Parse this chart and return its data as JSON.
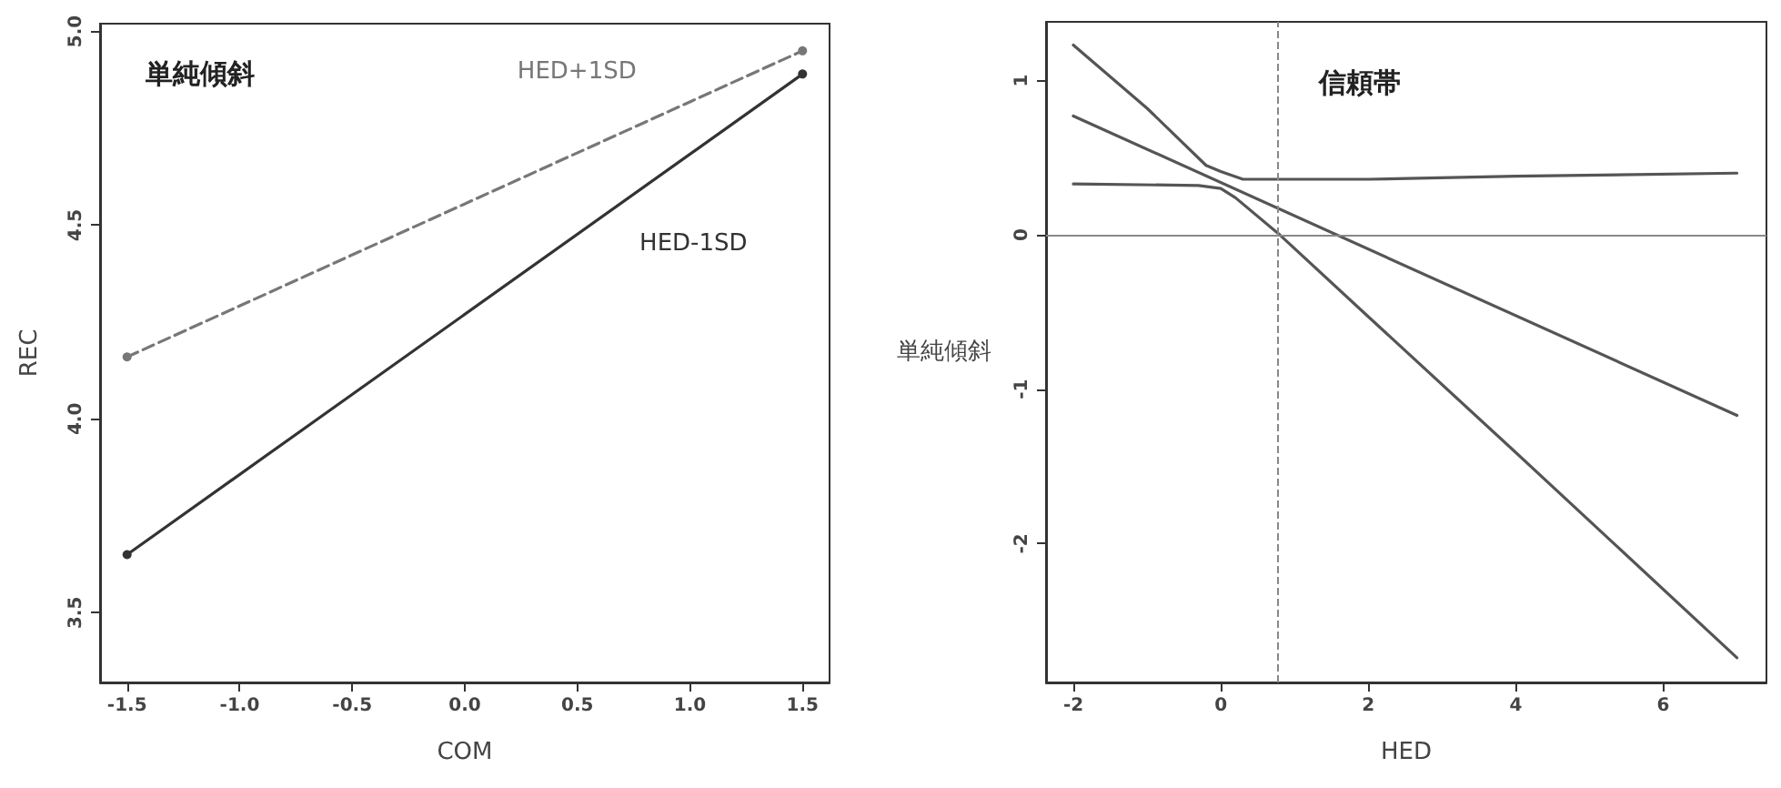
{
  "chart_data": [
    {
      "type": "line",
      "title": "単純傾斜",
      "xlabel": "COM",
      "ylabel": "REC",
      "marker": "circle",
      "xlim": [
        -1.62,
        1.62
      ],
      "ylim": [
        3.32,
        5.02
      ],
      "xticks": [
        -1.5,
        {
          "value": -1,
          "label": "-1.0"
        },
        -0.5,
        {
          "value": 0,
          "label": "0.0"
        },
        0.5,
        {
          "value": 1,
          "label": "1.0"
        },
        1.5
      ],
      "yticks": [
        3.5,
        {
          "value": 4,
          "label": "4.0"
        },
        4.5,
        {
          "value": 5,
          "label": "5.0"
        }
      ],
      "series": [
        {
          "name": "HED+1SD",
          "color": "#777777",
          "line_style": "dashed",
          "x": [
            -1.5,
            1.5
          ],
          "values": [
            4.16,
            4.95
          ]
        },
        {
          "name": "HED-1SD",
          "color": "#333333",
          "line_style": "solid",
          "x": [
            -1.5,
            1.5
          ],
          "values": [
            3.65,
            4.89
          ]
        }
      ]
    },
    {
      "type": "line",
      "title": "信頼帯",
      "xlabel": "HED",
      "ylabel": "単純傾斜",
      "marker": "none",
      "line_style": "solid",
      "xlim": [
        -2.37,
        7.4
      ],
      "ylim": [
        -2.9,
        1.38
      ],
      "xticks": [
        -2,
        0,
        2,
        4,
        6
      ],
      "yticks": [
        -2,
        -1,
        0,
        1
      ],
      "series": [
        {
          "color": "#555555",
          "x": [
            -2,
            7
          ],
          "values": [
            0.77,
            -1.17
          ]
        },
        {
          "color": "#555555",
          "x": [
            -2,
            -1,
            -0.2,
            0,
            0.3,
            2,
            4,
            7
          ],
          "values": [
            1.23,
            0.82,
            0.45,
            0.41,
            0.36,
            0.36,
            0.38,
            0.4
          ]
        },
        {
          "color": "#555555",
          "x": [
            -2,
            -0.3,
            0,
            0.2,
            0.8,
            2,
            4,
            7
          ],
          "values": [
            0.33,
            0.32,
            0.3,
            0.24,
            0,
            -0.53,
            -1.41,
            -2.74
          ]
        }
      ],
      "ref_lines": [
        {
          "axis": "y",
          "value": 0,
          "color": "#888888",
          "line_style": "solid"
        },
        {
          "axis": "x",
          "value": 0.76,
          "color": "#888888",
          "line_style": "dashed"
        }
      ]
    }
  ]
}
